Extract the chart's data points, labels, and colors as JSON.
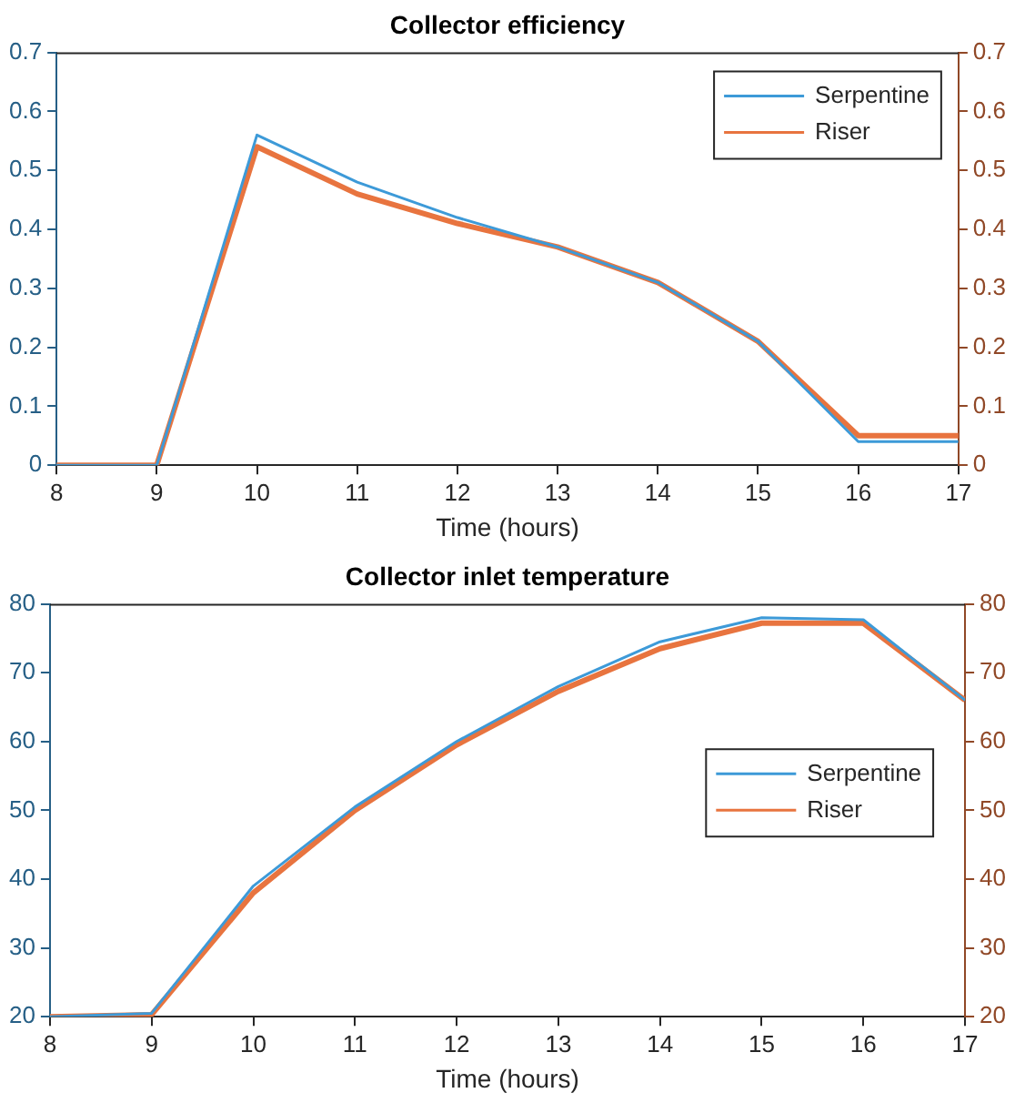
{
  "chart_data": [
    {
      "type": "line",
      "title": "Collector efficiency",
      "xlabel": "Time (hours)",
      "x": [
        8,
        9,
        10,
        11,
        12,
        13,
        14,
        15,
        16,
        17
      ],
      "series": [
        {
          "name": "Serpentine",
          "color": "#3d9ad8",
          "values": [
            0,
            0,
            0.56,
            0.48,
            0.42,
            0.37,
            0.31,
            0.21,
            0.04,
            0.04
          ]
        },
        {
          "name": "Riser",
          "color": "#e8743f",
          "axis": "y2",
          "values": [
            0,
            0,
            0.54,
            0.46,
            0.41,
            0.37,
            0.31,
            0.21,
            0.05,
            0.05
          ]
        }
      ],
      "xlim": [
        8,
        17
      ],
      "xticks": [
        8,
        9,
        10,
        11,
        12,
        13,
        14,
        15,
        16,
        17
      ],
      "ylim": [
        0,
        0.7
      ],
      "yticks": [
        0,
        0.1,
        0.2,
        0.3,
        0.4,
        0.5,
        0.6,
        0.7
      ],
      "y2lim": [
        0,
        0.7
      ],
      "y2ticks": [
        0,
        0.1,
        0.2,
        0.3,
        0.4,
        0.5,
        0.6,
        0.7
      ],
      "legend": "top right",
      "marker": "none",
      "line_style": "solid"
    },
    {
      "type": "line",
      "title": "Collector inlet temperature",
      "xlabel": "Time (hours)",
      "x": [
        8,
        9,
        10,
        11,
        12,
        13,
        14,
        15,
        16,
        17
      ],
      "series": [
        {
          "name": "Serpentine",
          "color": "#3d9ad8",
          "values": [
            20,
            20.5,
            39,
            50.5,
            60,
            68,
            74.5,
            78,
            77.7,
            66
          ]
        },
        {
          "name": "Riser",
          "color": "#e8743f",
          "axis": "y2",
          "values": [
            20,
            20.3,
            38,
            50,
            59.5,
            67.3,
            73.5,
            77.2,
            77.2,
            66
          ]
        }
      ],
      "xlim": [
        8,
        17
      ],
      "xticks": [
        8,
        9,
        10,
        11,
        12,
        13,
        14,
        15,
        16,
        17
      ],
      "ylim": [
        20,
        80
      ],
      "yticks": [
        20,
        30,
        40,
        50,
        60,
        70,
        80
      ],
      "y2lim": [
        20,
        80
      ],
      "y2ticks": [
        20,
        30,
        40,
        50,
        60,
        70,
        80
      ],
      "legend": "right",
      "marker": "none",
      "line_style": "solid"
    }
  ]
}
